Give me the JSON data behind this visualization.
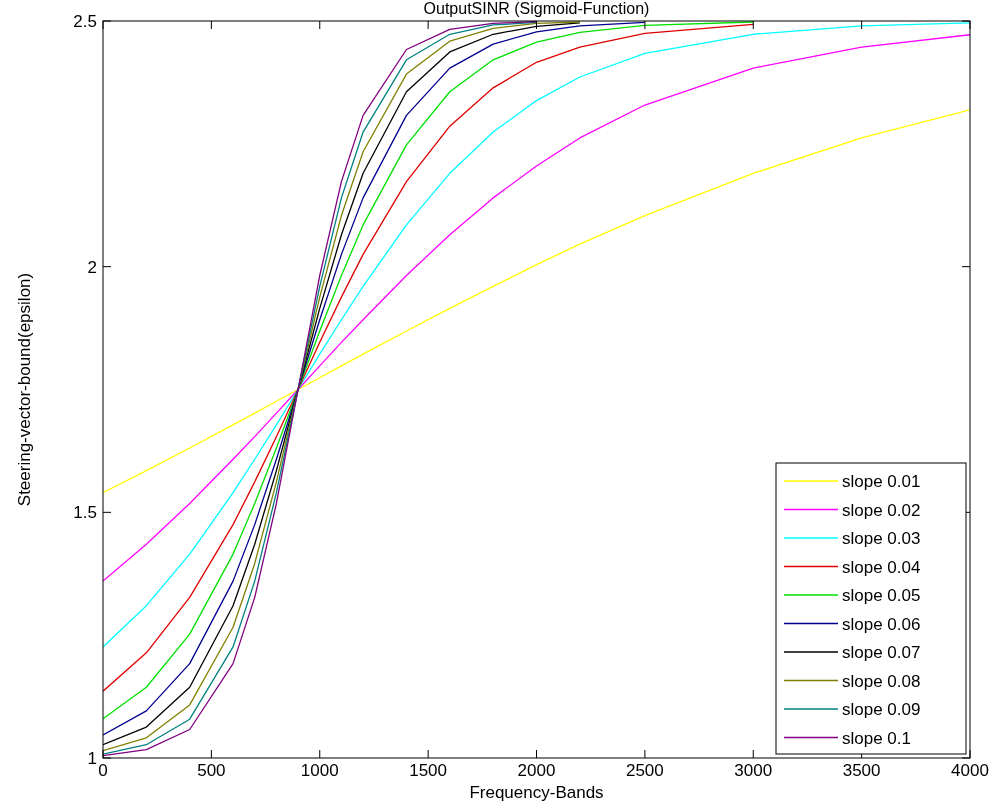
{
  "chart_data": {
    "type": "line",
    "title": "OutputSINR (Sigmoid-Function)",
    "xlabel": "Frequency-Bands",
    "ylabel": "Steering-vector-bound(epsilon)",
    "xlim": [
      0,
      4000
    ],
    "ylim": [
      1,
      2.5
    ],
    "xticks": [
      0,
      500,
      1000,
      1500,
      2000,
      2500,
      3000,
      3500,
      4000
    ],
    "yticks": [
      1,
      1.5,
      2,
      2.5
    ],
    "legend": "bottom right",
    "x": [
      0,
      200,
      400,
      600,
      700,
      800,
      900,
      1000,
      1100,
      1200,
      1400,
      1600,
      1800,
      2000,
      2200,
      2500,
      3000,
      3500,
      4000
    ],
    "series": [
      {
        "name": "slope 0.01",
        "color": "#ffff00",
        "values": [
          1.54,
          1.585,
          1.631,
          1.678,
          1.702,
          1.726,
          1.75,
          1.774,
          1.798,
          1.822,
          1.869,
          1.915,
          1.96,
          2.004,
          2.046,
          2.104,
          2.19,
          2.262,
          2.319
        ]
      },
      {
        "name": "slope 0.02",
        "color": "#ff00ff",
        "values": [
          1.36,
          1.435,
          1.518,
          1.608,
          1.654,
          1.702,
          1.75,
          1.798,
          1.846,
          1.892,
          1.982,
          2.065,
          2.14,
          2.205,
          2.262,
          2.329,
          2.404,
          2.447,
          2.472
        ]
      },
      {
        "name": "slope 0.03",
        "color": "#00ffff",
        "values": [
          1.226,
          1.31,
          1.415,
          1.54,
          1.608,
          1.678,
          1.75,
          1.822,
          1.892,
          1.96,
          2.085,
          2.19,
          2.274,
          2.338,
          2.386,
          2.434,
          2.473,
          2.49,
          2.496
        ]
      },
      {
        "name": "slope 0.04",
        "color": "#e00000",
        "values": [
          1.136,
          1.214,
          1.327,
          1.475,
          1.562,
          1.654,
          1.75,
          1.846,
          1.938,
          2.025,
          2.173,
          2.286,
          2.364,
          2.416,
          2.447,
          2.475,
          2.493,
          null,
          null
        ]
      },
      {
        "name": "slope 0.05",
        "color": "#00e000",
        "values": [
          1.08,
          1.144,
          1.252,
          1.415,
          1.518,
          1.631,
          1.75,
          1.869,
          1.982,
          2.085,
          2.248,
          2.356,
          2.421,
          2.457,
          2.477,
          2.491,
          2.498,
          null,
          null
        ]
      },
      {
        "name": "slope 0.06",
        "color": "#000090",
        "values": [
          1.047,
          1.096,
          1.192,
          1.36,
          1.475,
          1.608,
          1.75,
          1.892,
          2.025,
          2.14,
          2.308,
          2.404,
          2.453,
          2.478,
          2.49,
          2.497,
          null,
          null,
          null
        ]
      },
      {
        "name": "slope 0.07",
        "color": "#000000",
        "values": [
          1.027,
          1.063,
          1.144,
          1.31,
          1.435,
          1.585,
          1.75,
          1.915,
          2.065,
          2.19,
          2.356,
          2.437,
          2.473,
          2.489,
          2.496,
          null,
          null,
          null,
          null
        ]
      },
      {
        "name": "slope 0.08",
        "color": "#808000",
        "values": [
          1.015,
          1.041,
          1.108,
          1.266,
          1.396,
          1.562,
          1.75,
          1.938,
          2.104,
          2.234,
          2.392,
          2.459,
          2.485,
          2.495,
          2.498,
          null,
          null,
          null,
          null
        ]
      },
      {
        "name": "slope 0.09",
        "color": "#008080",
        "values": [
          1.008,
          1.027,
          1.079,
          1.226,
          1.36,
          1.54,
          1.75,
          1.96,
          2.14,
          2.274,
          2.421,
          2.473,
          2.492,
          2.497,
          null,
          null,
          null,
          null,
          null
        ]
      },
      {
        "name": "slope 0.1",
        "color": "#800080",
        "values": [
          1.005,
          1.017,
          1.058,
          1.192,
          1.327,
          1.518,
          1.75,
          1.982,
          2.173,
          2.308,
          2.442,
          2.483,
          2.495,
          2.499,
          null,
          null,
          null,
          null,
          null
        ]
      }
    ]
  }
}
